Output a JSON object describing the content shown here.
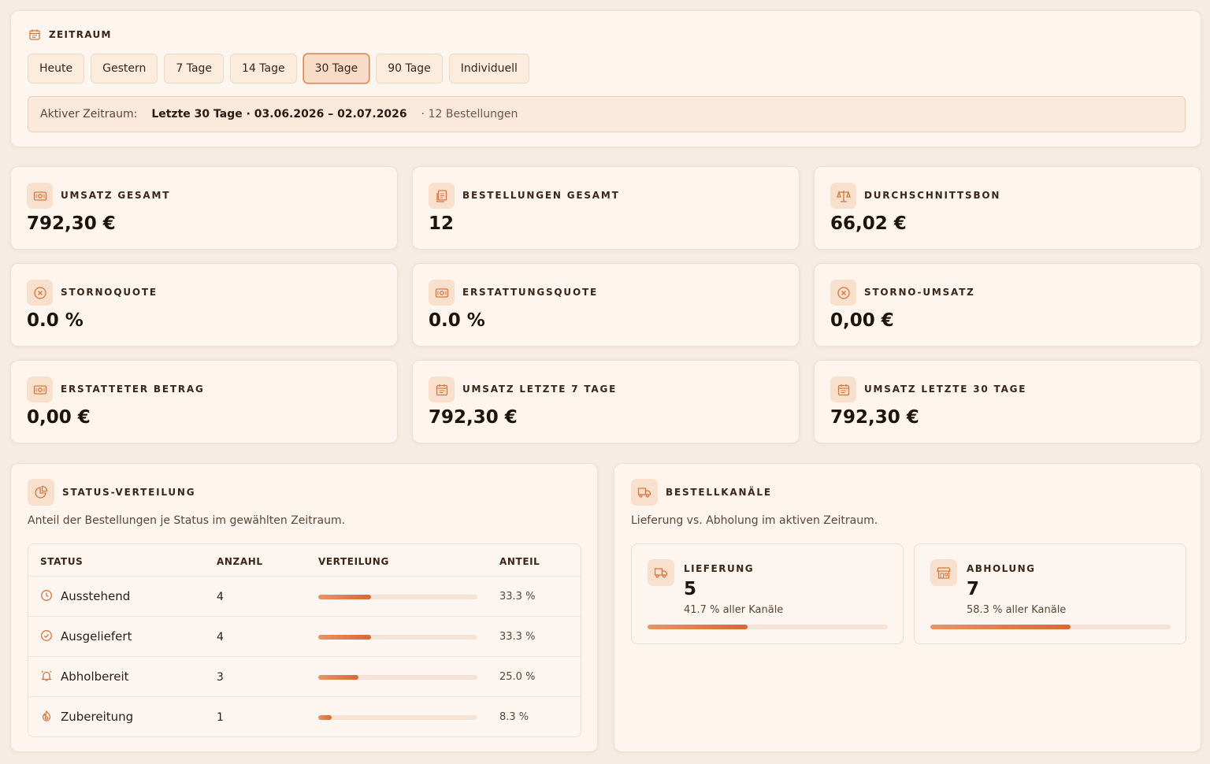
{
  "zeitraum": {
    "title": "ZEITRAUM",
    "chips": [
      {
        "label": "Heute",
        "active": false
      },
      {
        "label": "Gestern",
        "active": false
      },
      {
        "label": "7 Tage",
        "active": false
      },
      {
        "label": "14 Tage",
        "active": false
      },
      {
        "label": "30 Tage",
        "active": true
      },
      {
        "label": "90 Tage",
        "active": false
      },
      {
        "label": "Individuell",
        "active": false
      }
    ],
    "active_label": "Aktiver Zeitraum:",
    "active_range": "Letzte 30 Tage · 03.06.2026 – 02.07.2026",
    "active_count": "· 12 Bestellungen"
  },
  "kpis": [
    {
      "label": "UMSATZ GESAMT",
      "value": "792,30 €",
      "icon": "money-icon"
    },
    {
      "label": "BESTELLUNGEN GESAMT",
      "value": "12",
      "icon": "orders-icon"
    },
    {
      "label": "DURCHSCHNITTSBON",
      "value": "66,02 €",
      "icon": "scale-icon"
    },
    {
      "label": "STORNOQUOTE",
      "value": "0.0 %",
      "icon": "cancel-circle-icon"
    },
    {
      "label": "ERSTATTUNGSQUOTE",
      "value": "0.0 %",
      "icon": "money-icon"
    },
    {
      "label": "STORNO-UMSATZ",
      "value": "0,00 €",
      "icon": "cancel-circle-icon"
    },
    {
      "label": "ERSTATTETER BETRAG",
      "value": "0,00 €",
      "icon": "money-icon"
    },
    {
      "label": "UMSATZ LETZTE 7 TAGE",
      "value": "792,30 €",
      "icon": "calendar-icon"
    },
    {
      "label": "UMSATZ LETZTE 30 TAGE",
      "value": "792,30 €",
      "icon": "calendar-icon"
    }
  ],
  "status": {
    "title": "STATUS-VERTEILUNG",
    "description": "Anteil der Bestellungen je Status im gewählten Zeitraum.",
    "columns": {
      "status": "STATUS",
      "anzahl": "ANZAHL",
      "verteilung": "VERTEILUNG",
      "anteil": "ANTEIL"
    },
    "rows": [
      {
        "name": "Ausstehend",
        "count": "4",
        "share": 0.333,
        "pct": "33.3 %",
        "icon": "clock-icon"
      },
      {
        "name": "Ausgeliefert",
        "count": "4",
        "share": 0.333,
        "pct": "33.3 %",
        "icon": "check-circle-icon"
      },
      {
        "name": "Abholbereit",
        "count": "3",
        "share": 0.25,
        "pct": "25.0 %",
        "icon": "bell-icon"
      },
      {
        "name": "Zubereitung",
        "count": "1",
        "share": 0.083,
        "pct": "8.3 %",
        "icon": "flame-icon"
      }
    ]
  },
  "kanaele": {
    "title": "BESTELLKANÄLE",
    "description": "Lieferung vs. Abholung im aktiven Zeitraum.",
    "channels": [
      {
        "label": "LIEFERUNG",
        "value": "5",
        "sub": "41.7 % aller Kanäle",
        "share": 0.417,
        "icon": "truck-icon"
      },
      {
        "label": "ABHOLUNG",
        "value": "7",
        "sub": "58.3 % aller Kanäle",
        "share": 0.583,
        "icon": "store-icon"
      }
    ]
  },
  "colors": {
    "accent": "#d86a34",
    "background": "#f6ece3",
    "card": "#fdf5ee"
  }
}
